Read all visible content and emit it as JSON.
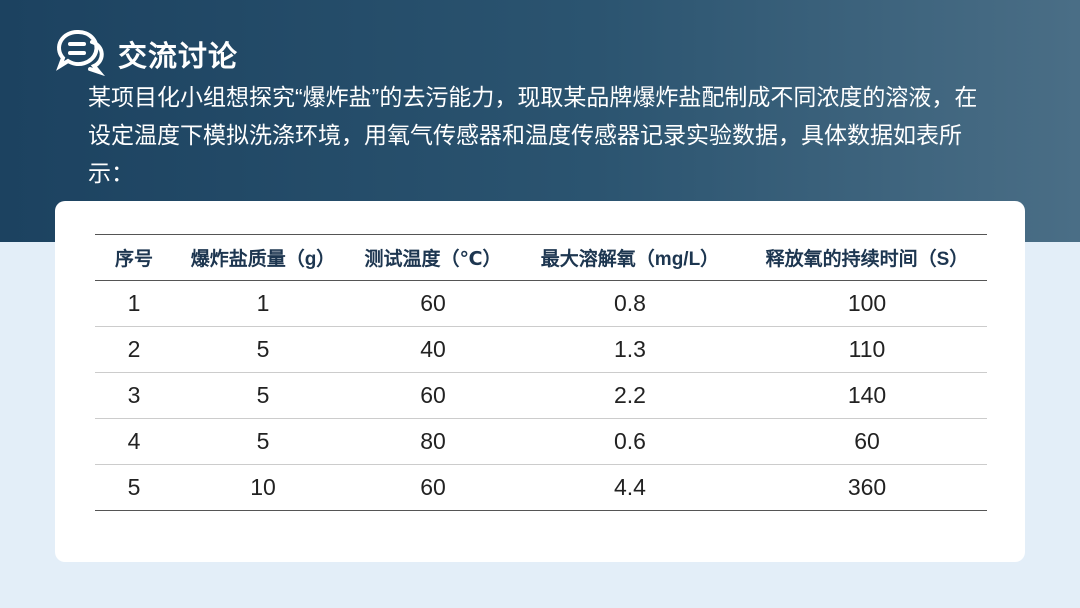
{
  "title": "交流讨论",
  "intro": "某项目化小组想探究“爆炸盐”的去污能力，现取某品牌爆炸盐配制成不同浓度的溶液，在设定温度下模拟洗涤环境，用氧气传感器和温度传感器记录实验数据，具体数据如表所示：",
  "table": {
    "headers": [
      "序号",
      "爆炸盐质量（g）",
      "测试温度（℃）",
      "最大溶解氧（mg/L）",
      "释放氧的持续时间（S）"
    ],
    "rows": [
      [
        "1",
        "1",
        "60",
        "0.8",
        "100"
      ],
      [
        "2",
        "5",
        "40",
        "1.3",
        "110"
      ],
      [
        "3",
        "5",
        "60",
        "2.2",
        "140"
      ],
      [
        "4",
        "5",
        "80",
        "0.6",
        "60"
      ],
      [
        "5",
        "10",
        "60",
        "4.4",
        "360"
      ]
    ]
  },
  "icon": "chat-bubbles-icon"
}
